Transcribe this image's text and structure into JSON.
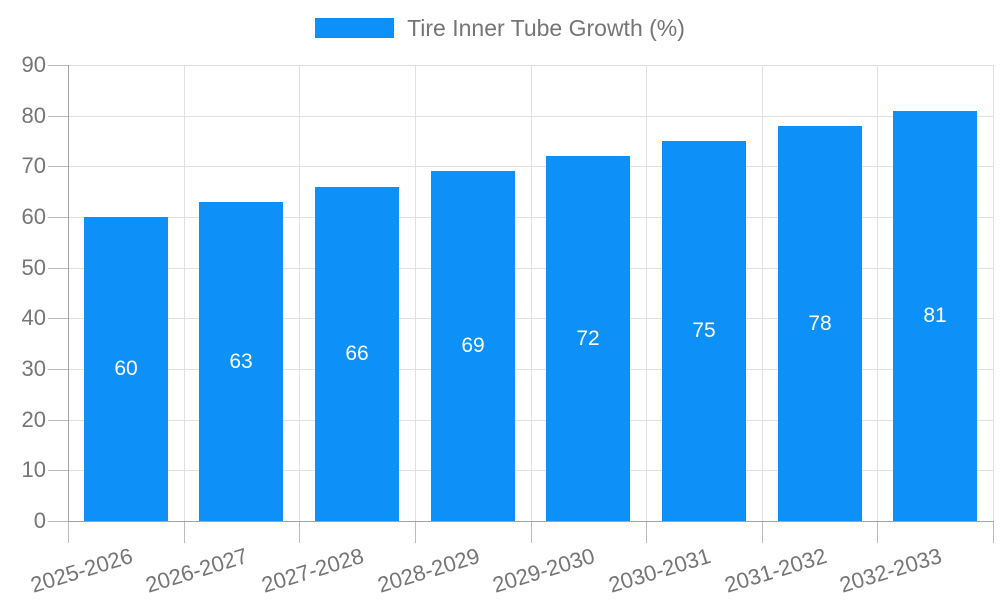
{
  "chart_data": {
    "type": "bar",
    "title": "",
    "series_name": "Tire Inner Tube Growth (%)",
    "categories": [
      "2025-2026",
      "2026-2027",
      "2027-2028",
      "2028-2029",
      "2029-2030",
      "2030-2031",
      "2031-2032",
      "2032-2033"
    ],
    "values": [
      60,
      63,
      66,
      69,
      72,
      75,
      78,
      81
    ],
    "xlabel": "",
    "ylabel": "",
    "ylim": [
      0,
      90
    ],
    "ytick_step": 10,
    "yticks": [
      0,
      10,
      20,
      30,
      40,
      50,
      60,
      70,
      80,
      90
    ],
    "grid": true,
    "legend_position": "top-center",
    "value_labels_position": "inside-center",
    "x_label_rotation_deg": -17,
    "colors": {
      "bar": "#0D90F8",
      "value_label": "#FFFFFF",
      "axis_text": "#757575",
      "grid_line": "#E0E0E0",
      "tick_line": "#BBBBBB",
      "axis_line": "#A3A3A3",
      "background": "#FFFFFF"
    }
  }
}
